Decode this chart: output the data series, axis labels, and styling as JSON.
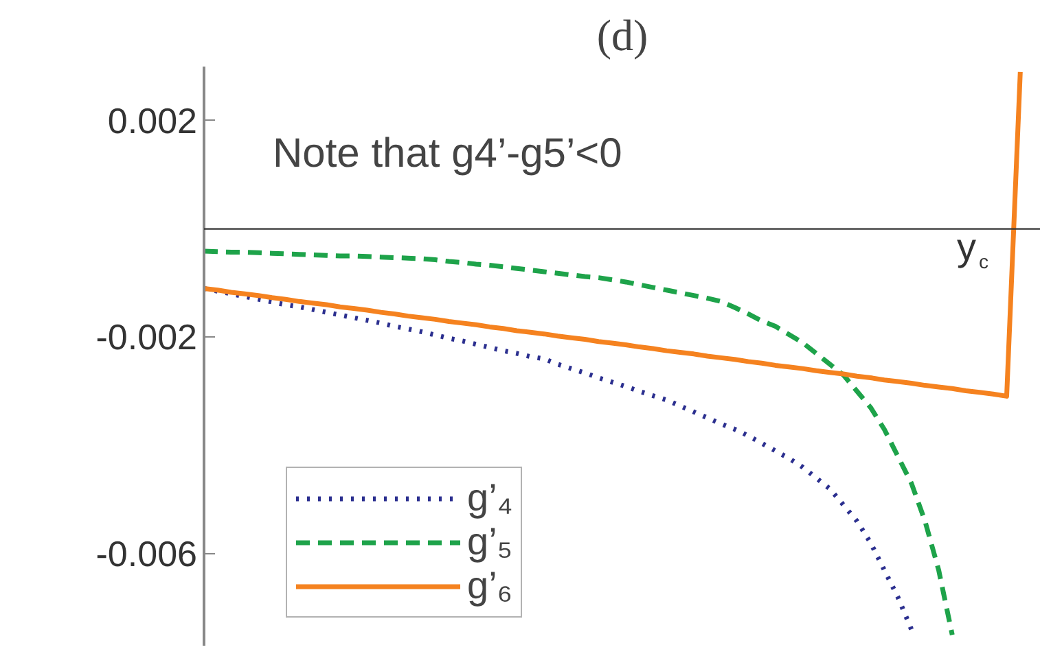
{
  "chart_data": {
    "type": "line",
    "title": "(d)",
    "annotations": [
      "Note that g4’-g5’<0",
      "y$_{c}$"
    ],
    "categories": [
      null,
      null,
      null,
      null,
      null,
      null,
      null,
      null,
      null,
      null,
      null,
      null,
      null,
      null,
      null,
      null,
      null,
      null,
      null,
      null,
      null,
      null,
      null,
      null,
      null,
      null,
      null,
      null,
      null,
      null,
      null,
      null,
      null,
      null,
      null,
      null,
      null,
      null,
      null,
      null,
      null,
      null,
      null,
      null,
      null,
      null,
      null,
      null,
      null,
      null,
      null,
      null,
      null,
      null,
      null,
      null,
      null,
      null,
      null,
      null,
      null
    ],
    "series": [
      {
        "name": "g’₄",
        "color": "#2b2f8f",
        "line_style": "dotted",
        "values": [
          -0.0011,
          -0.00115,
          -0.0012,
          -0.00125,
          -0.0013,
          -0.00135,
          -0.0014,
          -0.00144,
          -0.00149,
          -0.00154,
          -0.00159,
          -0.00164,
          -0.00169,
          -0.00174,
          -0.0018,
          -0.00185,
          -0.0019,
          -0.00196,
          -0.00202,
          -0.00207,
          -0.00213,
          -0.00219,
          -0.00225,
          -0.0023,
          -0.00236,
          -0.0024,
          -0.0025,
          -0.00258,
          -0.00266,
          -0.00275,
          -0.00283,
          -0.00291,
          -0.003,
          -0.00308,
          -0.00316,
          -0.00327,
          -0.00338,
          -0.00349,
          -0.0036,
          -0.0037,
          -0.00382,
          -0.00396,
          -0.0041,
          -0.00424,
          -0.0044,
          -0.0046,
          -0.0048,
          -0.0051,
          -0.0054,
          -0.0058,
          -0.0063,
          -0.0068,
          -0.0074,
          null,
          null,
          null,
          null,
          null,
          null,
          null,
          null
        ]
      },
      {
        "name": "g’₅",
        "color": "#1ea34a",
        "line_style": "dashed",
        "values": [
          -0.00041,
          -0.00042,
          -0.00043,
          -0.00043,
          -0.00044,
          -0.00045,
          -0.00046,
          -0.00047,
          -0.00048,
          -0.00049,
          -0.0005,
          -0.0005,
          -0.00051,
          -0.00052,
          -0.00053,
          -0.00054,
          -0.00055,
          -0.00057,
          -0.0006,
          -0.00062,
          -0.00065,
          -0.00067,
          -0.0007,
          -0.00073,
          -0.00076,
          -0.00079,
          -0.00082,
          -0.00085,
          -0.00088,
          -0.0009,
          -0.00094,
          -0.00098,
          -0.00103,
          -0.00108,
          -0.00113,
          -0.00118,
          -0.00123,
          -0.00128,
          -0.00134,
          -0.00145,
          -0.00157,
          -0.0017,
          -0.0018,
          -0.00195,
          -0.0021,
          -0.0023,
          -0.0025,
          -0.0027,
          -0.003,
          -0.0033,
          -0.0037,
          -0.0042,
          -0.0047,
          -0.0054,
          -0.0063,
          -0.0075,
          null,
          null,
          null,
          null,
          null
        ]
      },
      {
        "name": "g’₆",
        "color": "#f5821f",
        "line_style": "solid",
        "values": [
          -0.0011,
          -0.00113,
          -0.00117,
          -0.0012,
          -0.00123,
          -0.00127,
          -0.0013,
          -0.00134,
          -0.00137,
          -0.0014,
          -0.00144,
          -0.00147,
          -0.0015,
          -0.00154,
          -0.00157,
          -0.00161,
          -0.00164,
          -0.00167,
          -0.00171,
          -0.00174,
          -0.00177,
          -0.00181,
          -0.00184,
          -0.00188,
          -0.00191,
          -0.00194,
          -0.00198,
          -0.00201,
          -0.00204,
          -0.00208,
          -0.00211,
          -0.00214,
          -0.00218,
          -0.00221,
          -0.00225,
          -0.00228,
          -0.00231,
          -0.00235,
          -0.00238,
          -0.00241,
          -0.00245,
          -0.00248,
          -0.00252,
          -0.00255,
          -0.00258,
          -0.00262,
          -0.00265,
          -0.00268,
          -0.00272,
          -0.00275,
          -0.00279,
          -0.00282,
          -0.00285,
          -0.00289,
          -0.00292,
          -0.00295,
          -0.00299,
          -0.00302,
          -0.00305,
          -0.00309,
          0.0029
        ]
      }
    ],
    "ylim": [
      -0.0077,
      0.003
    ],
    "yticks": [
      0.002,
      -0.002,
      -0.006
    ],
    "ref_lines": [
      {
        "axis": "y",
        "value": 0,
        "color": "#333333"
      }
    ],
    "tick_labels": "y",
    "grid": false,
    "legend": "bottom left"
  }
}
